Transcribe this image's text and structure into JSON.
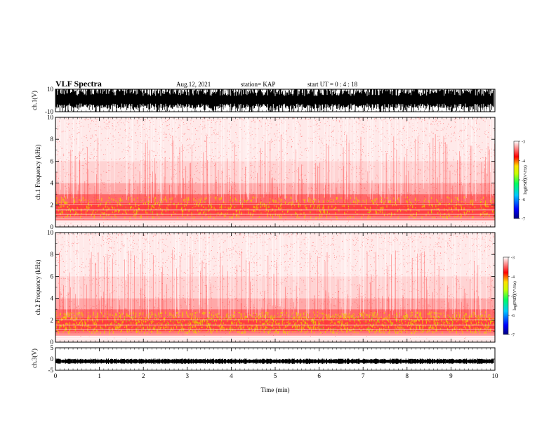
{
  "header": {
    "title": "VLF Spectra",
    "date": "Aug.12, 2021",
    "station": "station= KAP",
    "start_ut": "start  UT =   0  : 4  : 18"
  },
  "chart_data": [
    {
      "type": "line",
      "panel": "ch1-waveform",
      "ylabel": "ch.1(V)",
      "ylim": [
        -10,
        10
      ],
      "y_ticks": [
        10,
        -10
      ],
      "xlim": [
        0,
        10
      ]
    },
    {
      "type": "heatmap",
      "panel": "ch1-spectrogram",
      "ylabel": "ch.1 Frequency  (kHz)",
      "ylim": [
        0,
        10
      ],
      "y_ticks": [
        0,
        2,
        4,
        6,
        8,
        10
      ],
      "xlim": [
        0,
        10
      ],
      "colorbar": {
        "label": "log(PSD)(V²/Hz)",
        "ticks": [
          -3,
          -4,
          -5,
          -6,
          -7
        ],
        "range": [
          -7,
          -3
        ]
      }
    },
    {
      "type": "heatmap",
      "panel": "ch2-spectrogram",
      "ylabel": "ch.2 Frequency  (kHz)",
      "ylim": [
        0,
        10
      ],
      "y_ticks": [
        0,
        2,
        4,
        6,
        8,
        10
      ],
      "xlim": [
        0,
        10
      ],
      "colorbar": {
        "label": "log(PSD)(V²/Hz)",
        "ticks": [
          -3,
          -4,
          -5,
          -6,
          -7
        ],
        "range": [
          -7,
          -3
        ]
      }
    },
    {
      "type": "line",
      "panel": "ch3-waveform",
      "ylabel": "ch.3(V)",
      "ylim": [
        -5,
        5
      ],
      "y_ticks": [
        5,
        0,
        -5
      ],
      "xlim": [
        0,
        10
      ],
      "xlabel": "Time  (min)",
      "x_ticks": [
        0,
        1,
        2,
        3,
        4,
        5,
        6,
        7,
        8,
        9,
        10
      ]
    }
  ],
  "colors": {
    "cmap": [
      "#000080",
      "#0000ff",
      "#00c8ff",
      "#00ff60",
      "#c8ff00",
      "#ffe000",
      "#ff0000",
      "#ffffff"
    ]
  }
}
